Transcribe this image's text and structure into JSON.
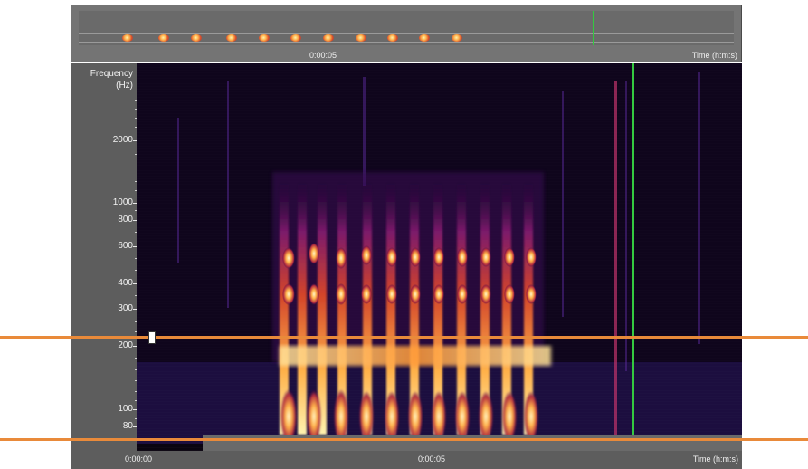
{
  "overview": {
    "time_label": "0:00:05",
    "axis_label": "Time (h:m:s)",
    "event_count": 11
  },
  "frequency_axis": {
    "title_line1": "Frequency",
    "title_line2": "(Hz)",
    "ticks": [
      "2000",
      "1000",
      "800",
      "600",
      "400",
      "300",
      "200",
      "100",
      "80"
    ]
  },
  "time_axis": {
    "ticks": [
      "0:00:00",
      "0:00:05"
    ],
    "axis_label": "Time (h:m:s)"
  },
  "selection": {
    "low_freq_hz": 70,
    "high_freq_hz": 220
  },
  "colors": {
    "selection_line": "#e98a3a",
    "cursor": "#34c940",
    "spectrogram_low": "#0a0410",
    "spectrogram_high": "#fff3b0"
  }
}
